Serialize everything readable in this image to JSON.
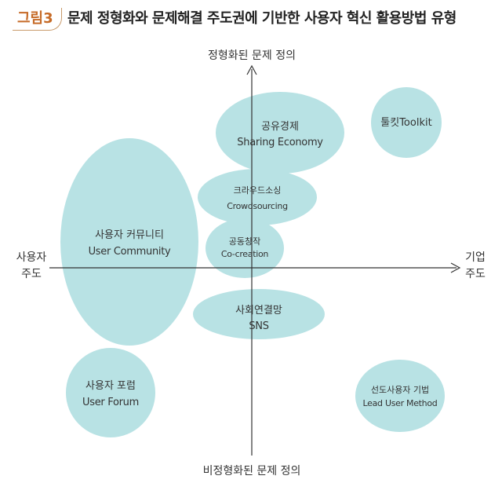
{
  "figure": {
    "label": "그림3",
    "title": "문제 정형화와 문제해결 주도권에 기반한 사용자 혁신 활용방법 유형"
  },
  "axes": {
    "top": "정형화된 문제 정의",
    "bottom": "비정형화된 문제 정의",
    "left_line1": "사용자",
    "left_line2": "주도",
    "right_line1": "기업",
    "right_line2": "주도"
  },
  "methods": {
    "sharing_economy": {
      "ko": "공유경제",
      "en": "Sharing Economy"
    },
    "toolkit": {
      "label": "툴킷Toolkit"
    },
    "crowdsourcing": {
      "ko": "크라우드소싱",
      "en": "Crowdsourcing"
    },
    "co_creation": {
      "ko": "공동창작",
      "en": "Co-creation"
    },
    "user_community": {
      "ko": "사용자 커뮤니티",
      "en": "User Community"
    },
    "sns": {
      "ko": "사회연결망",
      "en": "SNS"
    },
    "user_forum": {
      "ko": "사용자 포럼",
      "en": "User Forum"
    },
    "lead_user": {
      "ko": "선도사용자 기법",
      "en": "Lead User Method"
    }
  },
  "colors": {
    "bubble": "#b8e2e4",
    "axis": "#333333",
    "label_accent": "#c66a26"
  }
}
